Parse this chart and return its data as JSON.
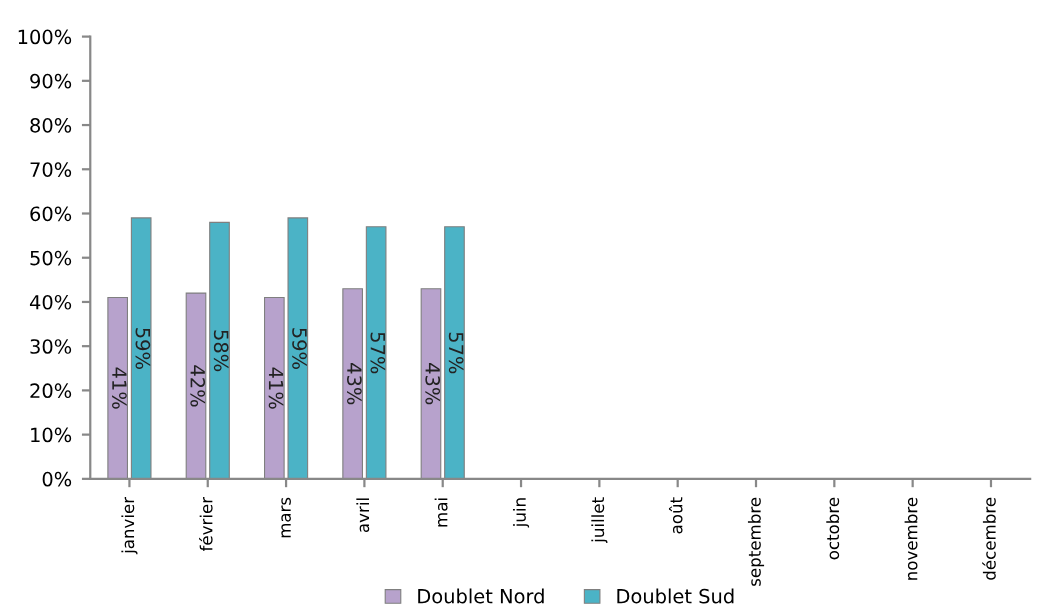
{
  "chart_data": {
    "type": "bar",
    "categories": [
      "janvier",
      "février",
      "mars",
      "avril",
      "mai",
      "juin",
      "juillet",
      "août",
      "septembre",
      "octobre",
      "novembre",
      "décembre"
    ],
    "series": [
      {
        "name": "Doublet Nord",
        "color": "#b7a2cc",
        "values": [
          41,
          42,
          41,
          43,
          43,
          null,
          null,
          null,
          null,
          null,
          null,
          null
        ],
        "value_labels": [
          "41%",
          "42%",
          "41%",
          "43%",
          "43%",
          null,
          null,
          null,
          null,
          null,
          null,
          null
        ]
      },
      {
        "name": "Doublet Sud",
        "color": "#4bb3c6",
        "values": [
          59,
          58,
          59,
          57,
          57,
          null,
          null,
          null,
          null,
          null,
          null,
          null
        ],
        "value_labels": [
          "59%",
          "58%",
          "59%",
          "57%",
          "57%",
          null,
          null,
          null,
          null,
          null,
          null,
          null
        ]
      }
    ],
    "ylim": [
      0,
      100
    ],
    "yticks": [
      {
        "value": 0,
        "label": "0%"
      },
      {
        "value": 10,
        "label": "10%"
      },
      {
        "value": 20,
        "label": "20%"
      },
      {
        "value": 30,
        "label": "30%"
      },
      {
        "value": 40,
        "label": "40%"
      },
      {
        "value": 50,
        "label": "50%"
      },
      {
        "value": 60,
        "label": "60%"
      },
      {
        "value": 70,
        "label": "70%"
      },
      {
        "value": 80,
        "label": "80%"
      },
      {
        "value": 90,
        "label": "90%"
      },
      {
        "value": 100,
        "label": "100%"
      }
    ],
    "grid": false,
    "legend": "bottom"
  }
}
